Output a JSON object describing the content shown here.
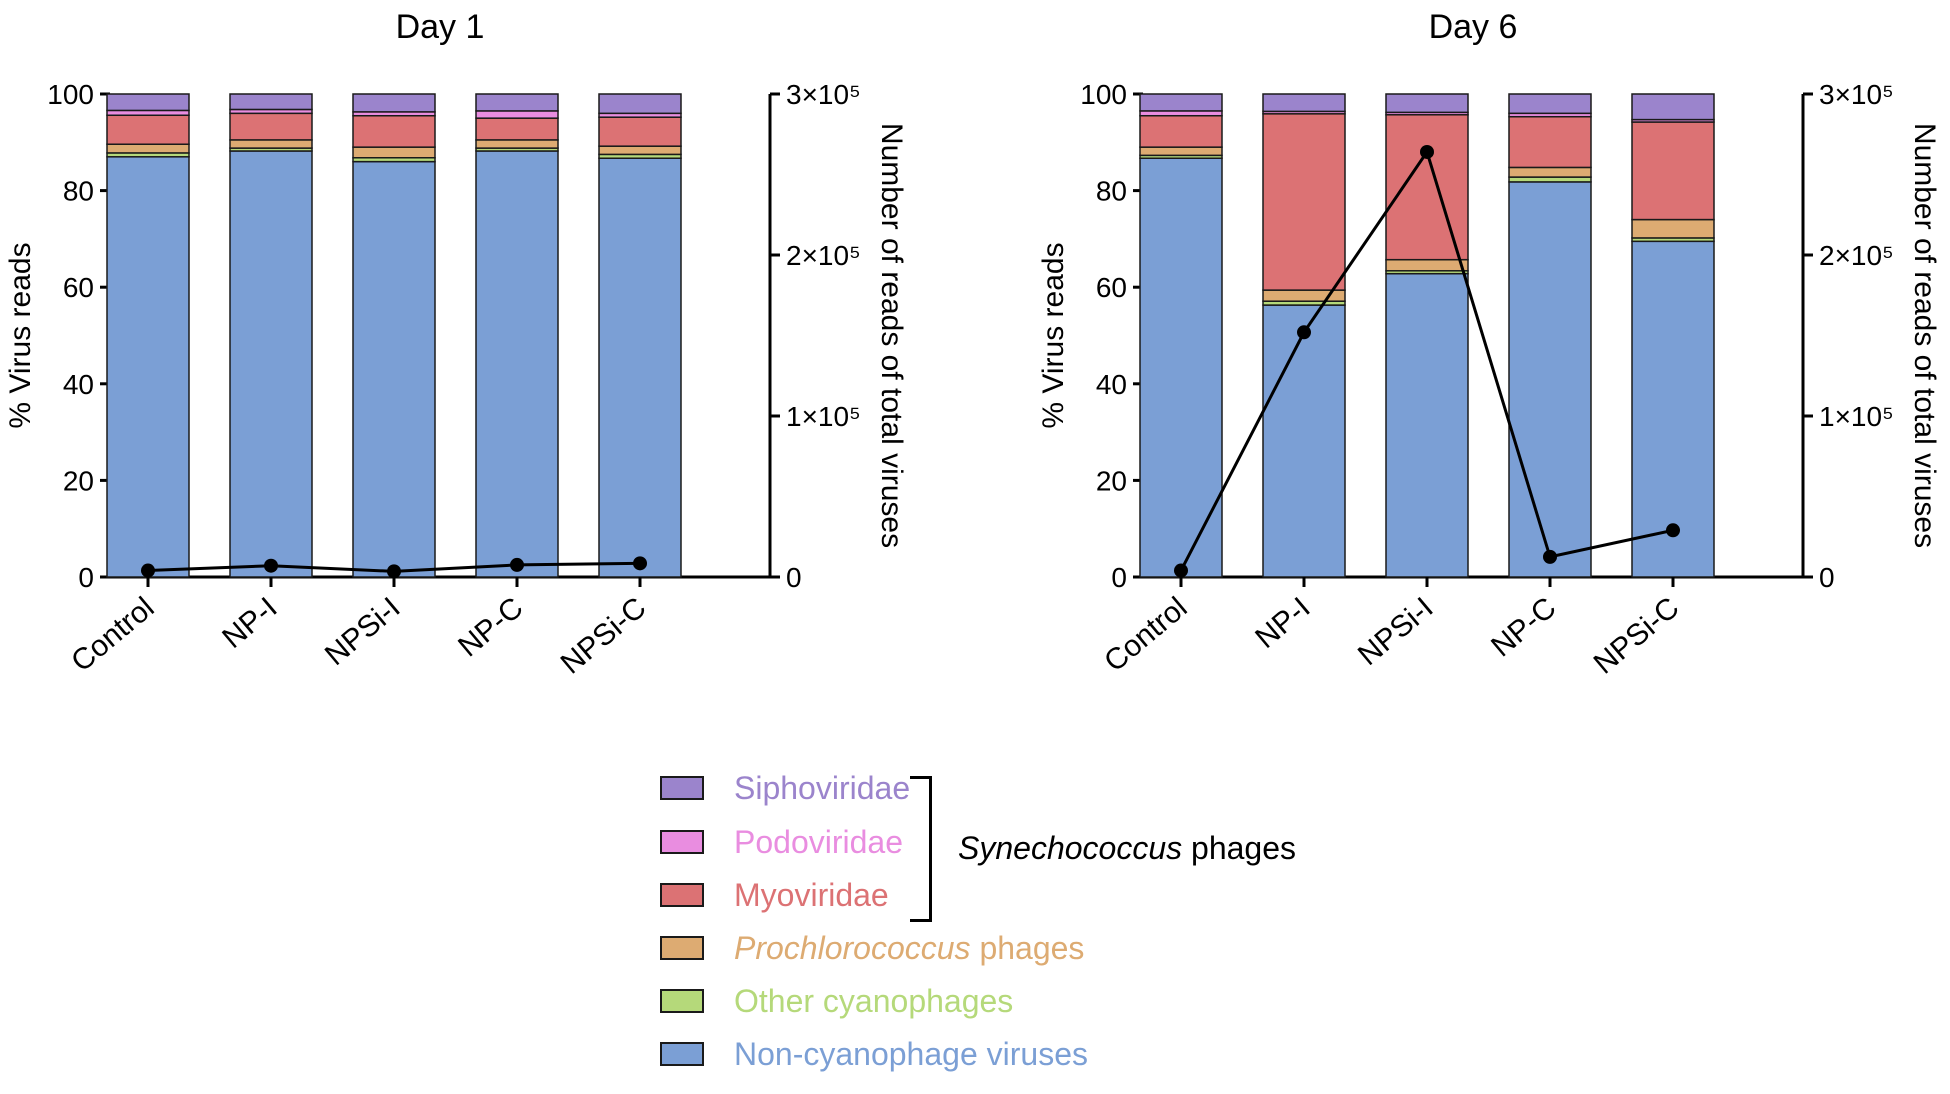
{
  "chart_data": [
    {
      "type": "bar",
      "title": "Day 1",
      "ylabel": "% Virus reads",
      "y2label": "Number of reads of total viruses",
      "ylim": [
        0,
        100
      ],
      "yticks": [
        "0",
        "20",
        "40",
        "60",
        "80",
        "100"
      ],
      "y2lim": [
        0,
        300000
      ],
      "y2ticks": [
        "0",
        "1×10⁵",
        "2×10⁵",
        "3×10⁵"
      ],
      "categories": [
        "Control",
        "NP-I",
        "NPSi-I",
        "NP-C",
        "NPSi-C"
      ],
      "stacked": true,
      "series": [
        {
          "name": "Non-cyanophage viruses",
          "values": [
            87.0,
            88.2,
            86.0,
            88.2,
            86.7
          ]
        },
        {
          "name": "Other cyanophages",
          "values": [
            0.8,
            0.6,
            0.8,
            0.6,
            0.8
          ]
        },
        {
          "name": "Prochlorococcus phages",
          "values": [
            1.8,
            1.7,
            2.2,
            1.7,
            1.7
          ]
        },
        {
          "name": "Myoviridae",
          "values": [
            6.0,
            5.5,
            6.5,
            4.5,
            6.0
          ]
        },
        {
          "name": "Podoviridae",
          "values": [
            1.0,
            0.8,
            0.8,
            1.5,
            0.8
          ]
        },
        {
          "name": "Siphoviridae",
          "values": [
            3.4,
            3.2,
            3.7,
            3.5,
            4.0
          ]
        }
      ],
      "line": {
        "name": "Number of reads of total viruses",
        "values": [
          4000,
          7000,
          3500,
          7500,
          8500
        ]
      }
    },
    {
      "type": "bar",
      "title": "Day 6",
      "ylabel": "% Virus reads",
      "y2label": "Number of reads of total viruses",
      "ylim": [
        0,
        100
      ],
      "yticks": [
        "0",
        "20",
        "40",
        "60",
        "80",
        "100"
      ],
      "y2lim": [
        0,
        300000
      ],
      "y2ticks": [
        "0",
        "1×10⁵",
        "2×10⁵",
        "3×10⁵"
      ],
      "categories": [
        "Control",
        "NP-I",
        "NPSi-I",
        "NP-C",
        "NPSi-C"
      ],
      "stacked": true,
      "series": [
        {
          "name": "Non-cyanophage viruses",
          "values": [
            86.7,
            56.3,
            62.8,
            81.8,
            69.5
          ]
        },
        {
          "name": "Other cyanophages",
          "values": [
            0.6,
            0.8,
            0.6,
            1.0,
            0.7
          ]
        },
        {
          "name": "Prochlorococcus phages",
          "values": [
            1.7,
            2.3,
            2.3,
            2.0,
            3.8
          ]
        },
        {
          "name": "Myoviridae",
          "values": [
            6.5,
            36.5,
            30.0,
            10.5,
            20.2
          ]
        },
        {
          "name": "Podoviridae",
          "values": [
            1.0,
            0.5,
            0.5,
            0.7,
            0.5
          ]
        },
        {
          "name": "Siphoviridae",
          "values": [
            3.5,
            3.6,
            3.8,
            4.0,
            5.3
          ]
        }
      ],
      "line": {
        "name": "Number of reads of total viruses",
        "values": [
          4000,
          152000,
          264000,
          12500,
          29000
        ]
      }
    }
  ],
  "legend": {
    "items": [
      {
        "key": "sipho",
        "label": "Siphoviridae",
        "fill": "#9b84cc",
        "text_color": "#9b84cc"
      },
      {
        "key": "podo",
        "label": "Podoviridae",
        "fill": "#e98de0",
        "text_color": "#e98de0"
      },
      {
        "key": "myo",
        "label": "Myoviridae",
        "fill": "#dc7274",
        "text_color": "#dc7274"
      },
      {
        "key": "prochloro",
        "label_italic": "Prochlorococcus",
        "label_rest": " phages",
        "fill": "#ddab72",
        "text_color": "#ddab72"
      },
      {
        "key": "other",
        "label": "Other cyanophages",
        "fill": "#b5d97a",
        "text_color": "#b5d97a"
      },
      {
        "key": "noncyano",
        "label": "Non-cyanophage viruses",
        "fill": "#7b9fd5",
        "text_color": "#7b9fd5"
      }
    ],
    "group_italic": "Synechococcus",
    "group_rest": " phages"
  },
  "colors": {
    "Non-cyanophage viruses": "#7b9fd5",
    "Other cyanophages": "#b5d97a",
    "Prochlorococcus phages": "#ddab72",
    "Myoviridae": "#dc7274",
    "Podoviridae": "#e98de0",
    "Siphoviridae": "#9b84cc",
    "line": "#000000"
  }
}
